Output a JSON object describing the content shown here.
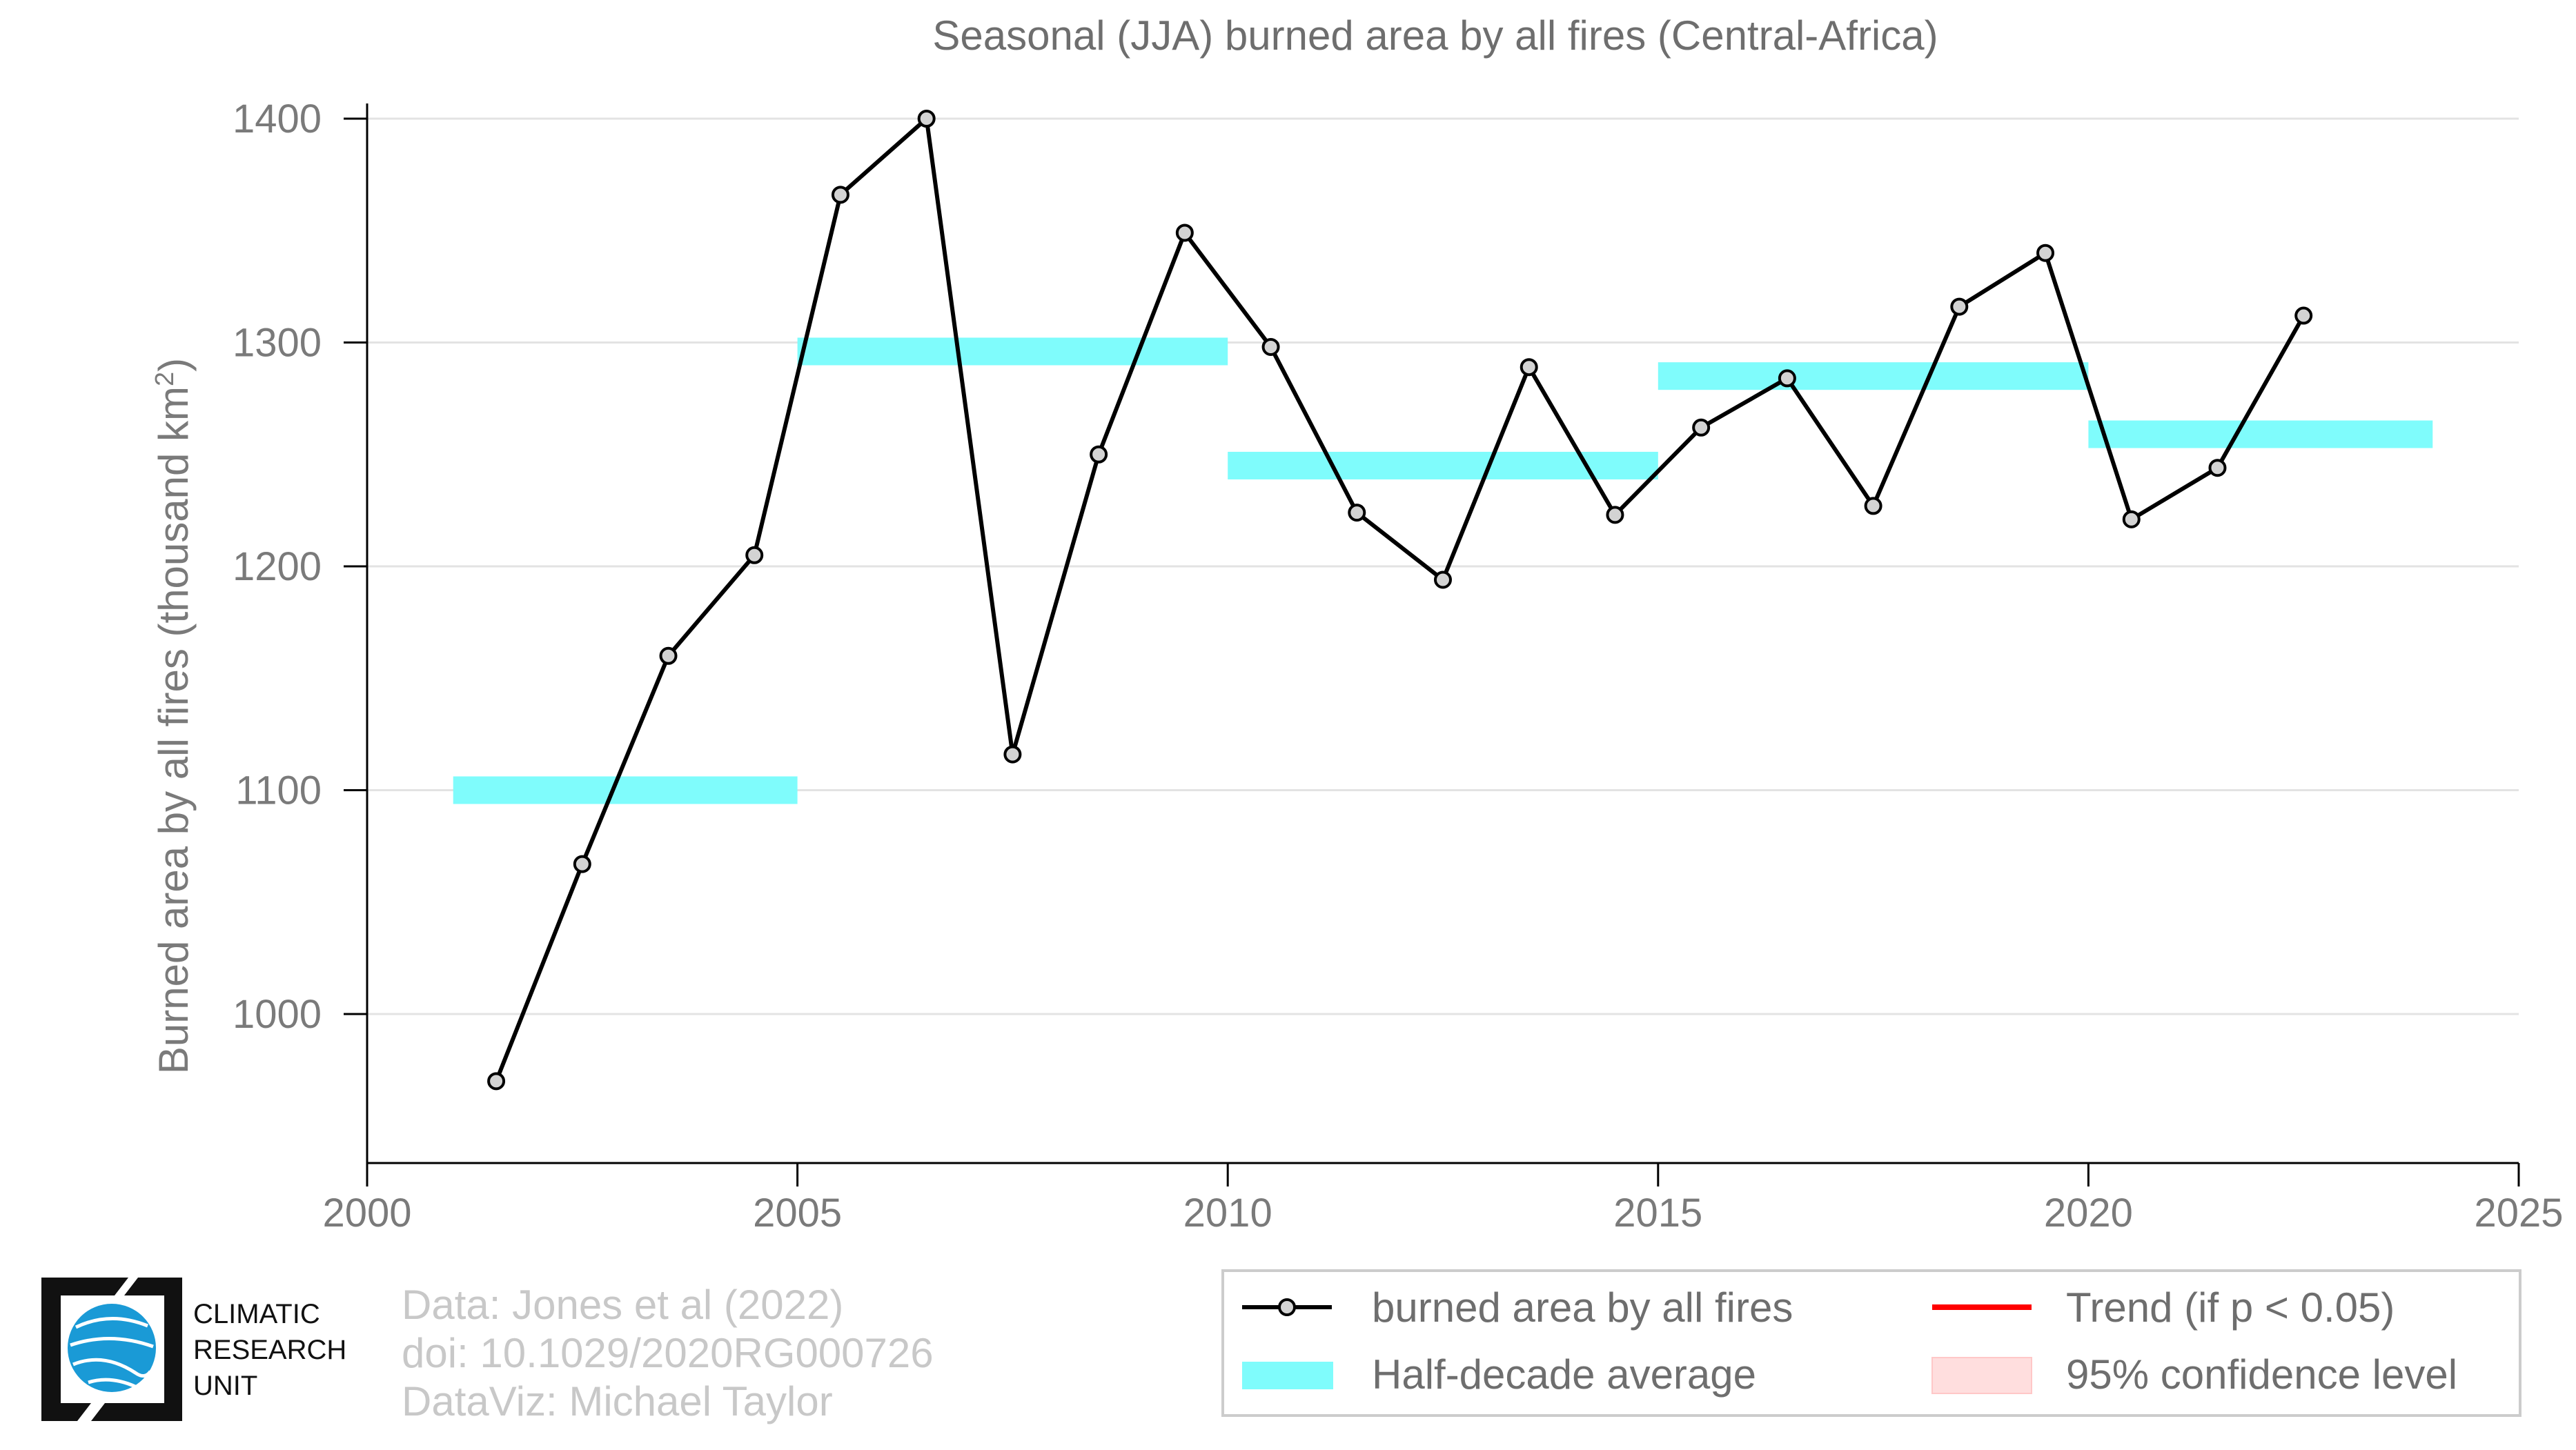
{
  "chart_data": {
    "type": "line",
    "title": "Seasonal (JJA) burned area by all fires (Central-Africa)",
    "xlabel": "",
    "ylabel": "Burned area by all fires (thousand km",
    "ylabel_sup": "2",
    "ylabel_end": ")",
    "xlim": [
      2000,
      2025
    ],
    "ylim": [
      935,
      1405
    ],
    "x_ticks": [
      2000,
      2005,
      2010,
      2015,
      2020,
      2025
    ],
    "y_ticks": [
      1000,
      1100,
      1200,
      1300,
      1400
    ],
    "grid": true,
    "series": [
      {
        "name": "burned area by all fires",
        "color": "#000000",
        "marker_fill": "#d3d3d3",
        "x": [
          2001.5,
          2002.5,
          2003.5,
          2004.5,
          2005.5,
          2006.5,
          2007.5,
          2008.5,
          2009.5,
          2010.5,
          2011.5,
          2012.5,
          2013.5,
          2014.5,
          2015.5,
          2016.5,
          2017.5,
          2018.5,
          2019.5,
          2020.5,
          2021.5,
          2022.5
        ],
        "y": [
          970,
          1067,
          1160,
          1205,
          1366,
          1400,
          1116,
          1250,
          1349,
          1298,
          1224,
          1194,
          1289,
          1223,
          1262,
          1284,
          1227,
          1316,
          1340,
          1221,
          1244,
          1312
        ]
      }
    ],
    "half_decade_average": {
      "name": "Half-decade average",
      "color": "#7ffcfc",
      "segments": [
        {
          "start": 2001,
          "end": 2005,
          "value": 1100
        },
        {
          "start": 2005,
          "end": 2010,
          "value": 1296
        },
        {
          "start": 2010,
          "end": 2015,
          "value": 1245
        },
        {
          "start": 2015,
          "end": 2020,
          "value": 1285
        },
        {
          "start": 2020,
          "end": 2024,
          "value": 1259
        }
      ]
    },
    "legend": {
      "placement": "bottom-right",
      "items": [
        {
          "label": "burned area by all fires",
          "kind": "line-marker",
          "color": "#000000"
        },
        {
          "label": "Trend (if p < 0.05)",
          "kind": "line",
          "color": "#ff0000"
        },
        {
          "label": "Half-decade average",
          "kind": "band",
          "color": "#7ffcfc"
        },
        {
          "label": "95% confidence level",
          "kind": "patch",
          "color": "#ffdede"
        }
      ]
    }
  },
  "credits": {
    "line1": "Data: Jones et al (2022)",
    "line2": "doi: 10.1029/2020RG000726",
    "line3": "DataViz: Michael Taylor"
  },
  "logo": {
    "line1": "CLIMATIC",
    "line2": "RESEARCH",
    "line3": "UNIT",
    "icon": "globe-icon",
    "color": "#1a9ad6"
  }
}
